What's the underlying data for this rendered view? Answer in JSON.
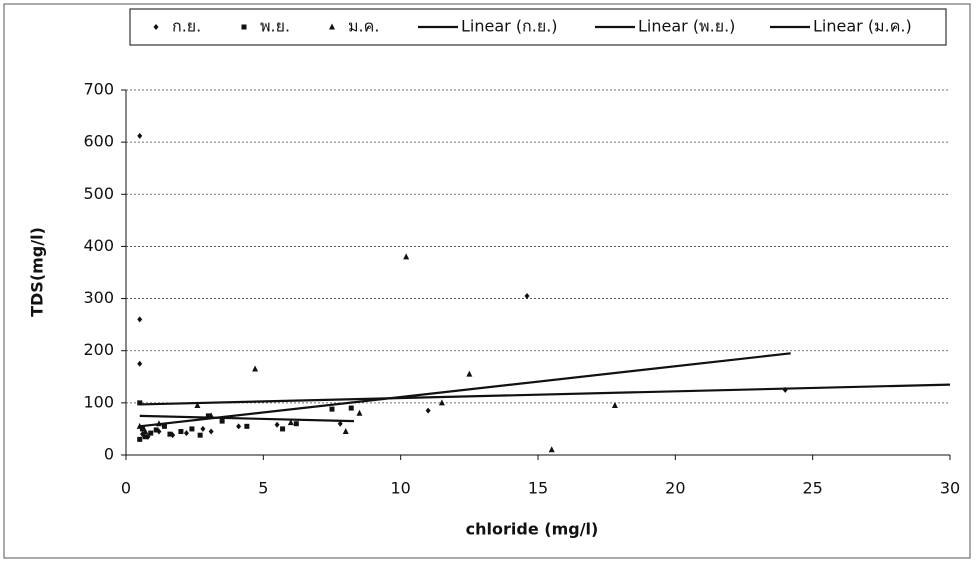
{
  "chart_data": {
    "type": "scatter",
    "x_label": "chloride (mg/l)",
    "y_label": "TDS(mg/l)",
    "xlim": [
      0,
      30
    ],
    "xticks": [
      0,
      5,
      10,
      15,
      20,
      25,
      30
    ],
    "ylim": [
      0,
      700
    ],
    "yticks": [
      0,
      100,
      200,
      300,
      400,
      500,
      600,
      700
    ],
    "grid": true,
    "legend": "top",
    "series": [
      {
        "name": "ก.ย.",
        "color": "#111111",
        "style": "diamond",
        "x": [
          0.5,
          0.5,
          0.5,
          0.6,
          0.8,
          1.2,
          1.7,
          2.2,
          2.8,
          3.1,
          4.1,
          5.5,
          7.8,
          11,
          14.6,
          24
        ],
        "values": [
          612,
          260,
          175,
          40,
          35,
          45,
          38,
          42,
          50,
          45,
          55,
          58,
          60,
          85,
          305,
          125
        ]
      },
      {
        "name": "พ.ย.",
        "color": "#111111",
        "style": "square",
        "x": [
          0.5,
          0.5,
          0.6,
          0.7,
          0.9,
          1.1,
          1.4,
          1.6,
          2.0,
          2.4,
          2.7,
          3.0,
          3.5,
          4.4,
          5.7,
          6.2,
          7.5,
          8.2
        ],
        "values": [
          100,
          30,
          50,
          35,
          42,
          48,
          55,
          40,
          45,
          50,
          38,
          75,
          65,
          55,
          50,
          60,
          88,
          90
        ]
      },
      {
        "name": "ม.ค.",
        "color": "#111111",
        "style": "triangle",
        "x": [
          0.5,
          0.7,
          1.2,
          2.6,
          3.1,
          4.7,
          6,
          8,
          8.5,
          10.2,
          11.5,
          12.5,
          15.5,
          17.8
        ],
        "values": [
          55,
          45,
          60,
          95,
          75,
          165,
          62,
          45,
          80,
          380,
          100,
          155,
          10,
          95
        ]
      },
      {
        "name": "Linear (ก.ย.)",
        "color": "#111111",
        "style": "line",
        "x": [
          0.5,
          30
        ],
        "values": [
          97,
          135
        ]
      },
      {
        "name": "Linear (พ.ย.)",
        "color": "#111111",
        "style": "line",
        "x": [
          0.5,
          8.3
        ],
        "values": [
          75,
          65
        ]
      },
      {
        "name": "Linear (ม.ค.)",
        "color": "#111111",
        "style": "line",
        "x": [
          0.5,
          24.2
        ],
        "values": [
          55,
          195
        ]
      }
    ]
  }
}
